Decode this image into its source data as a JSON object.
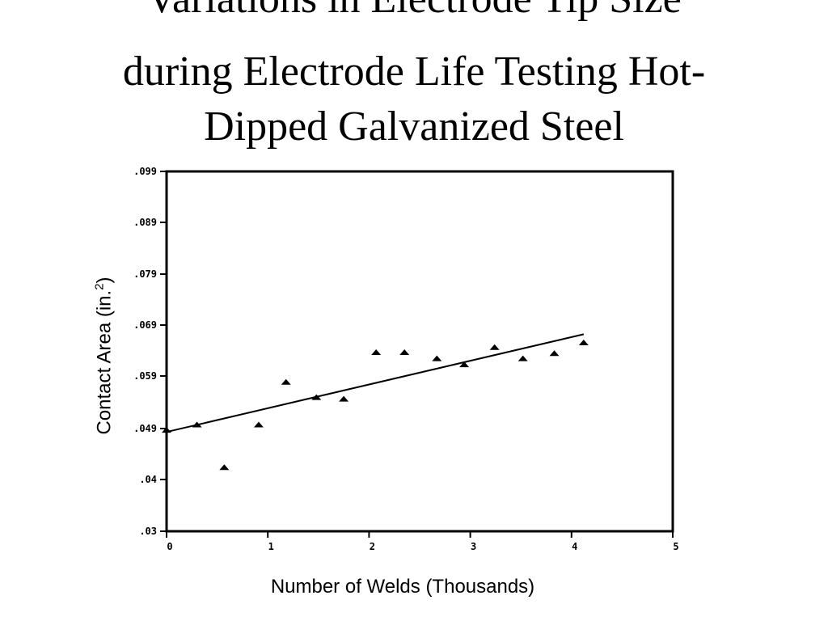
{
  "title": {
    "line1": "Variations in Electrode Tip Size",
    "line2": "during Electrode Life Testing Hot-",
    "line3": "Dipped Galvanized Steel"
  },
  "chart_data": {
    "type": "scatter",
    "title": "Variations in Electrode Tip Size during Electrode Life Testing Hot-Dipped Galvanized Steel",
    "xlabel": "Number of Welds (Thousands)",
    "ylabel_main": "Contact Area (in.",
    "ylabel_sup": "2",
    "ylabel_close": ")",
    "xlim": [
      0,
      5
    ],
    "ylim": [
      0.03,
      0.099
    ],
    "xticks": [
      0,
      1,
      2,
      3,
      4,
      5
    ],
    "xtick_labels": [
      "0",
      "1",
      "2",
      "3",
      "4",
      "5"
    ],
    "yticks": [
      0.03,
      0.04,
      0.049,
      0.059,
      0.069,
      0.079,
      0.089,
      0.099
    ],
    "ytick_labels": [
      ".03",
      ".04",
      ".049",
      ".059",
      ".069",
      ".079",
      ".089",
      ".099"
    ],
    "grid": false,
    "points": [
      {
        "x": 0.0,
        "y": 0.0487
      },
      {
        "x": 0.3,
        "y": 0.0497
      },
      {
        "x": 0.57,
        "y": 0.0421
      },
      {
        "x": 0.91,
        "y": 0.0497
      },
      {
        "x": 1.18,
        "y": 0.0578
      },
      {
        "x": 1.48,
        "y": 0.0549
      },
      {
        "x": 1.75,
        "y": 0.0546
      },
      {
        "x": 2.07,
        "y": 0.0636
      },
      {
        "x": 2.35,
        "y": 0.0636
      },
      {
        "x": 2.67,
        "y": 0.0624
      },
      {
        "x": 2.94,
        "y": 0.0612
      },
      {
        "x": 3.24,
        "y": 0.0646
      },
      {
        "x": 3.52,
        "y": 0.0624
      },
      {
        "x": 3.83,
        "y": 0.0634
      },
      {
        "x": 4.12,
        "y": 0.0655
      }
    ],
    "trendline": {
      "x": [
        0.0,
        4.12
      ],
      "y": [
        0.0484,
        0.0672
      ]
    },
    "marker": "triangle",
    "color": "#000000"
  }
}
